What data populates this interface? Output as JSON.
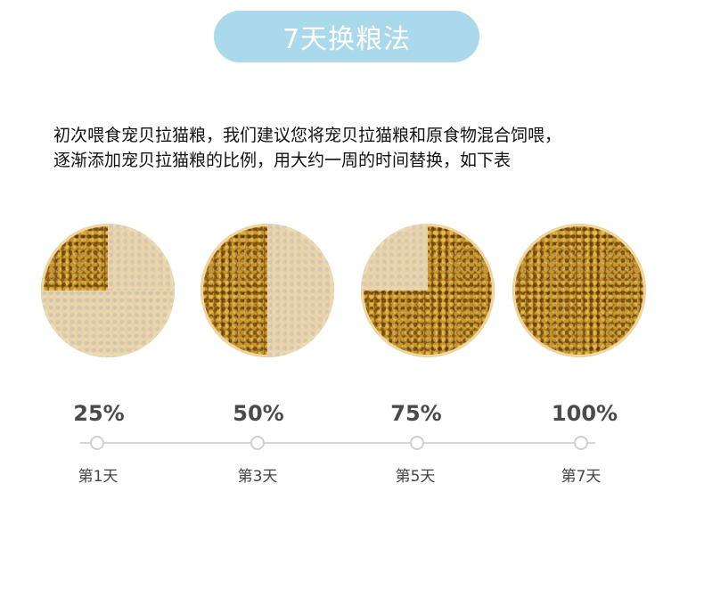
{
  "title": "7天换粮法",
  "intro": {
    "line1": "初次喂食宠贝拉猫粮，我们建议您将宠贝拉猫粮和原食物混合饲喂，",
    "line2": "逐渐添加宠贝拉猫粮的比例，用大约一周的时间替换，如下表"
  },
  "steps": [
    {
      "percent": "25%",
      "day": "第1天",
      "new_food_fraction": 0.25
    },
    {
      "percent": "50%",
      "day": "第3天",
      "new_food_fraction": 0.5
    },
    {
      "percent": "75%",
      "day": "第5天",
      "new_food_fraction": 0.75
    },
    {
      "percent": "100%",
      "day": "第7天",
      "new_food_fraction": 1.0
    }
  ],
  "colors": {
    "pill": "#a9d9ea",
    "kibble": "#a8701c",
    "old_food_overlay": "#eedcb2"
  }
}
